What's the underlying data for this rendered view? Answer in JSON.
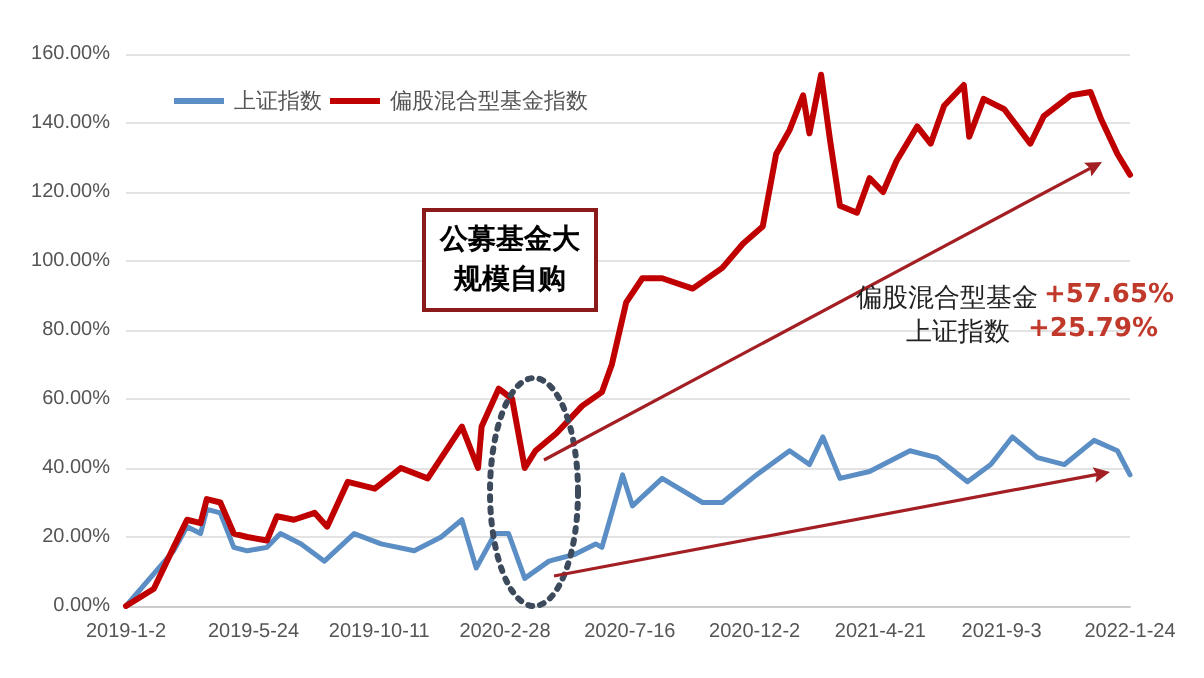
{
  "chart_data": {
    "type": "line",
    "annotations": [
      "公募基金大规模自购",
      "偏股混合型基金",
      "+57.65%",
      "上证指数",
      "+25.79%"
    ],
    "xlim": [
      "2019-01-02",
      "2022-01-24"
    ],
    "xticks": [
      {
        "value": "2019-01-02",
        "label": "2019-1-2"
      },
      {
        "value": "2019-05-24",
        "label": "2019-5-24"
      },
      {
        "value": "2019-10-11",
        "label": "2019-10-11"
      },
      {
        "value": "2020-02-28",
        "label": "2020-2-28"
      },
      {
        "value": "2020-07-16",
        "label": "2020-7-16"
      },
      {
        "value": "2020-12-02",
        "label": "2020-12-2"
      },
      {
        "value": "2021-04-21",
        "label": "2021-4-21"
      },
      {
        "value": "2021-09-03",
        "label": "2021-9-3"
      },
      {
        "value": "2022-01-24",
        "label": "2022-1-24"
      }
    ],
    "ylim": [
      0,
      160
    ],
    "yticks": [
      {
        "value": 0,
        "label": "0.00%"
      },
      {
        "value": 20,
        "label": "20.00%"
      },
      {
        "value": 40,
        "label": "40.00%"
      },
      {
        "value": 60,
        "label": "60.00%"
      },
      {
        "value": 80,
        "label": "80.00%"
      },
      {
        "value": 100,
        "label": "100.00%"
      },
      {
        "value": 120,
        "label": "120.00%"
      },
      {
        "value": 140,
        "label": "140.00%"
      },
      {
        "value": 160,
        "label": "160.00%"
      }
    ],
    "grid": "y",
    "legend": "top left",
    "marker": "none",
    "line_style": "solid",
    "series": [
      {
        "name": "上证指数",
        "color": "#5b8ec4",
        "x": [
          "2019-01-02",
          "2019-02-02",
          "2019-02-24",
          "2019-03-11",
          "2019-03-26",
          "2019-04-02",
          "2019-04-17",
          "2019-05-02",
          "2019-05-17",
          "2019-06-08",
          "2019-06-23",
          "2019-07-16",
          "2019-08-11",
          "2019-09-13",
          "2019-10-13",
          "2019-11-19",
          "2019-12-19",
          "2020-01-11",
          "2020-01-27",
          "2020-02-17",
          "2020-03-03",
          "2020-03-21",
          "2020-04-17",
          "2020-05-16",
          "2020-06-08",
          "2020-06-15",
          "2020-07-08",
          "2020-07-19",
          "2020-08-21",
          "2020-10-05",
          "2020-10-27",
          "2020-12-04",
          "2021-01-10",
          "2021-02-01",
          "2021-02-16",
          "2021-03-07",
          "2021-04-09",
          "2021-05-24",
          "2021-06-23",
          "2021-07-27",
          "2021-08-22",
          "2021-09-15",
          "2021-10-13",
          "2021-11-12",
          "2021-12-15",
          "2022-01-10",
          "2022-01-24"
        ],
        "values": [
          0,
          null,
          16,
          23,
          21,
          28,
          27,
          17,
          16,
          17,
          21,
          18,
          13,
          21,
          18,
          16,
          20,
          25,
          11,
          21,
          21,
          8,
          13,
          15,
          18,
          17,
          38,
          29,
          37,
          30,
          30,
          38,
          45,
          41,
          49,
          37,
          39,
          45,
          43,
          36,
          41,
          49,
          43,
          41,
          48,
          45,
          38
        ]
      },
      {
        "name": "偏股混合型基金指数",
        "color": "#c00000",
        "x": [
          "2019-01-02",
          "2019-02-02",
          "2019-02-24",
          "2019-03-11",
          "2019-03-26",
          "2019-04-02",
          "2019-04-17",
          "2019-05-02",
          "2019-05-17",
          "2019-06-08",
          "2019-06-19",
          "2019-07-08",
          "2019-07-31",
          "2019-08-14",
          "2019-09-06",
          "2019-10-06",
          "2019-11-04",
          "2019-12-04",
          "2020-01-11",
          "2020-01-29",
          "2020-02-02",
          "2020-02-21",
          "2020-03-07",
          "2020-03-21",
          "2020-04-02",
          "2020-04-25",
          "2020-05-24",
          "2020-06-15",
          "2020-06-26",
          "2020-07-12",
          "2020-07-30",
          "2020-08-21",
          "2020-09-24",
          "2020-10-27",
          "2020-11-19",
          "2020-12-11",
          "2020-12-26",
          "2021-01-10",
          "2021-01-25",
          "2021-02-01",
          "2021-02-14",
          "2021-02-24",
          "2021-03-07",
          "2021-03-26",
          "2021-04-09",
          "2021-04-24",
          "2021-05-09",
          "2021-06-01",
          "2021-06-16",
          "2021-07-01",
          "2021-07-23",
          "2021-07-29",
          "2021-08-14",
          "2021-09-06",
          "2021-10-05",
          "2021-10-20",
          "2021-11-19",
          "2021-12-11",
          "2021-12-23",
          "2022-01-10",
          "2022-01-24"
        ],
        "values": [
          0,
          5,
          17,
          25,
          24,
          31,
          30,
          21,
          20,
          19,
          26,
          25,
          27,
          23,
          36,
          34,
          40,
          37,
          52,
          40,
          52,
          63,
          60,
          40,
          45,
          50,
          58,
          62,
          70,
          88,
          95,
          95,
          92,
          98,
          105,
          110,
          131,
          138,
          148,
          137,
          154,
          135,
          116,
          114,
          124,
          120,
          129,
          139,
          134,
          145,
          151,
          136,
          147,
          144,
          134,
          142,
          148,
          149,
          141,
          131,
          125
        ]
      }
    ]
  }
}
